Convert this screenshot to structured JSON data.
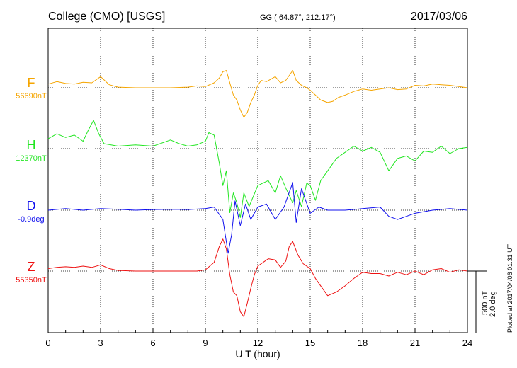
{
  "header": {
    "station": "College (CMO)  [USGS]",
    "coords": "GG ( 64.87°, 212.17°)",
    "date": "2017/03/06"
  },
  "scale": {
    "nt": "500 nT",
    "deg": "2.0 deg"
  },
  "plotted_note": "Plotted at 2017/04/06 01:31  UT",
  "colors": {
    "F": "#f5a500",
    "H": "#22e622",
    "D": "#1010ee",
    "Z": "#ee1111"
  },
  "chart_data": {
    "type": "line",
    "title": "College (CMO)  [USGS]",
    "xlabel": "U T (hour)",
    "ylabel": "",
    "xlim": [
      0,
      24
    ],
    "x_ticks": [
      "0",
      "3",
      "6",
      "9",
      "12",
      "15",
      "18",
      "21",
      "24"
    ],
    "grid": true,
    "series": [
      {
        "name": "F",
        "baseline_label": "56690nT",
        "x": [
          0,
          0.5,
          1,
          1.5,
          2,
          2.5,
          3,
          3.5,
          4,
          5,
          6,
          7,
          8,
          8.5,
          9,
          9.5,
          9.8,
          10,
          10.2,
          10.4,
          10.6,
          10.8,
          11,
          11.2,
          11.4,
          11.6,
          11.8,
          12,
          12.2,
          12.5,
          13,
          13.3,
          13.6,
          13.8,
          14,
          14.2,
          14.5,
          14.8,
          15,
          15.3,
          15.6,
          16,
          16.3,
          16.6,
          17,
          17.5,
          18,
          18.5,
          19,
          19.5,
          20,
          20.5,
          21,
          21.5,
          22,
          22.5,
          23,
          23.5,
          24
        ],
        "values": [
          30,
          50,
          35,
          30,
          45,
          40,
          90,
          25,
          5,
          0,
          0,
          0,
          5,
          15,
          10,
          40,
          80,
          130,
          140,
          40,
          -60,
          -100,
          -180,
          -240,
          -200,
          -120,
          -60,
          20,
          60,
          50,
          90,
          40,
          60,
          100,
          140,
          60,
          20,
          0,
          -20,
          -60,
          -100,
          -120,
          -110,
          -80,
          -60,
          -30,
          -10,
          -20,
          -10,
          0,
          -15,
          -10,
          20,
          15,
          30,
          25,
          20,
          10,
          0
        ]
      },
      {
        "name": "H",
        "baseline_label": "12370nT",
        "x": [
          0,
          0.5,
          1,
          1.5,
          2,
          2.3,
          2.6,
          2.9,
          3.2,
          4,
          5,
          6,
          7,
          7.5,
          8,
          8.5,
          9,
          9.2,
          9.5,
          9.8,
          10,
          10.2,
          10.4,
          10.6,
          10.8,
          11,
          11.2,
          11.5,
          12,
          12.3,
          12.6,
          13,
          13.3,
          13.6,
          14,
          14.2,
          14.5,
          14.8,
          15,
          15.3,
          15.6,
          16,
          16.5,
          17,
          17.5,
          18,
          18.5,
          19,
          19.5,
          20,
          20.5,
          21,
          21.5,
          22,
          22.5,
          23,
          23.5,
          24
        ],
        "values": [
          80,
          120,
          90,
          110,
          60,
          150,
          230,
          120,
          40,
          20,
          30,
          20,
          70,
          40,
          20,
          30,
          60,
          130,
          110,
          -120,
          -300,
          -180,
          -520,
          -360,
          -440,
          -560,
          -360,
          -470,
          -300,
          -280,
          -260,
          -360,
          -220,
          -320,
          -440,
          -340,
          -470,
          -280,
          -300,
          -420,
          -260,
          -180,
          -80,
          -30,
          20,
          -20,
          10,
          -30,
          -180,
          -80,
          -60,
          -100,
          -20,
          -30,
          20,
          -40,
          0,
          10
        ]
      },
      {
        "name": "D",
        "baseline_label": "-0.9deg",
        "x": [
          0,
          1,
          2,
          3,
          4,
          5,
          6,
          7,
          8,
          9,
          9.5,
          10,
          10.3,
          10.5,
          10.7,
          11,
          11.3,
          11.6,
          12,
          12.5,
          13,
          13.5,
          14,
          14.2,
          14.5,
          15,
          15.5,
          16,
          17,
          18,
          19,
          19.5,
          20,
          20.5,
          21,
          22,
          23,
          24
        ],
        "values": [
          0,
          0.05,
          0,
          0.05,
          0.03,
          0,
          0.02,
          0.03,
          0.02,
          0.05,
          0.1,
          -0.3,
          -1.4,
          -0.8,
          0.3,
          -0.5,
          0.2,
          -0.3,
          0.1,
          0.2,
          -0.3,
          0.1,
          0.9,
          -0.4,
          0.7,
          -0.1,
          0.1,
          0,
          0,
          0.05,
          0.1,
          -0.2,
          -0.3,
          -0.2,
          -0.1,
          0,
          0.05,
          0
        ]
      },
      {
        "name": "Z",
        "baseline_label": "55350nT",
        "x": [
          0,
          0.5,
          1,
          1.5,
          2,
          2.5,
          3,
          3.5,
          4,
          5,
          6,
          7,
          8,
          8.5,
          9,
          9.5,
          9.8,
          10,
          10.2,
          10.4,
          10.6,
          10.8,
          11,
          11.2,
          11.4,
          11.6,
          11.8,
          12,
          12.3,
          12.6,
          13,
          13.3,
          13.6,
          13.8,
          14,
          14.3,
          14.6,
          15,
          15.3,
          15.6,
          16,
          16.5,
          17,
          17.5,
          18,
          18.5,
          19,
          19.5,
          20,
          20.5,
          21,
          21.5,
          22,
          22.5,
          23,
          23.5,
          24
        ],
        "values": [
          20,
          30,
          35,
          30,
          40,
          30,
          50,
          20,
          5,
          0,
          0,
          0,
          0,
          0,
          10,
          70,
          200,
          260,
          180,
          -30,
          -170,
          -200,
          -330,
          -370,
          -260,
          -140,
          -30,
          40,
          70,
          100,
          90,
          30,
          80,
          200,
          240,
          130,
          60,
          20,
          -60,
          -120,
          -200,
          -170,
          -120,
          -60,
          -10,
          -20,
          -20,
          -40,
          -10,
          -30,
          0,
          -30,
          10,
          20,
          -10,
          10,
          0
        ]
      }
    ]
  }
}
